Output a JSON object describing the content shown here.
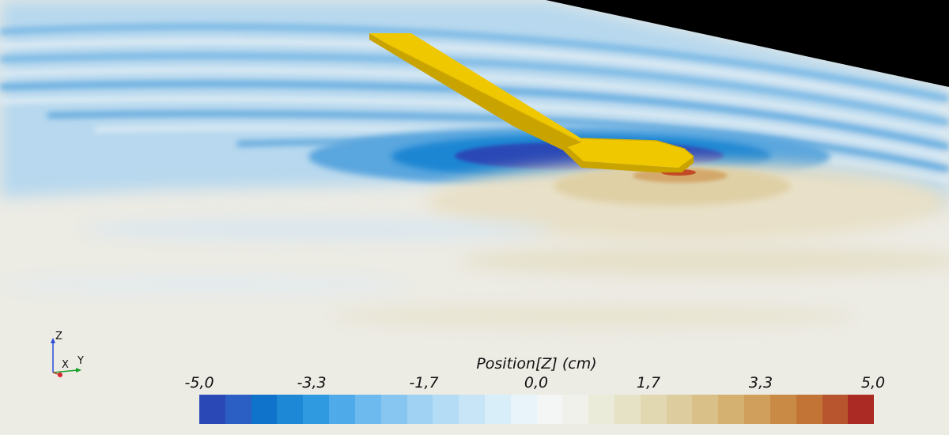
{
  "colors": {
    "hull": "#f0c800",
    "hull_side": "#c9a400",
    "background_sky": "#000000",
    "water_neutral": "#ecebe4"
  },
  "colorbar": {
    "title": "Position[Z] (cm)",
    "ticks": [
      "-5,0",
      "-3,3",
      "-1,7",
      "0,0",
      "1,7",
      "3,3",
      "5,0"
    ],
    "range": [
      -5.0,
      5.0
    ],
    "steps": [
      "#2a49b6",
      "#2b5fc4",
      "#0f72cb",
      "#1c88d6",
      "#2f9ae0",
      "#4eaae8",
      "#6cbaee",
      "#86c6f0",
      "#9fd2f3",
      "#b4dcf5",
      "#c7e5f7",
      "#d8eef9",
      "#e8f4fa",
      "#f3f6f4",
      "#f1f1eb",
      "#ebebda",
      "#e6e2c6",
      "#e1d8b2",
      "#ddcc9e",
      "#d9bf88",
      "#d4b170",
      "#cf9f5b",
      "#c98a46",
      "#c27436",
      "#b8552e",
      "#ac2a24"
    ]
  },
  "axes": {
    "z": "Z",
    "x": "X",
    "y": "Y"
  }
}
